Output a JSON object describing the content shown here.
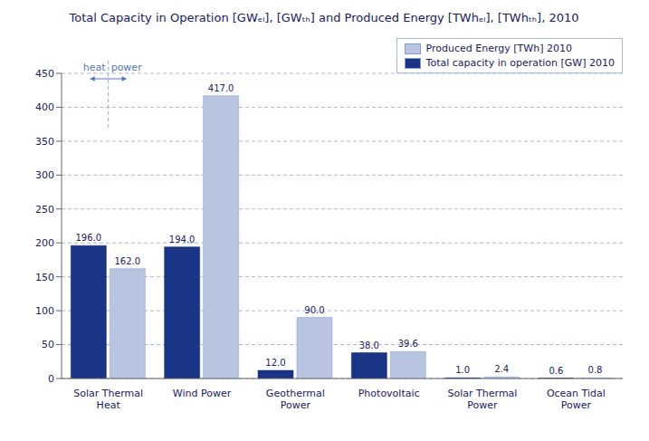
{
  "chart_data": {
    "type": "bar",
    "title": "Total Capacity in Operation [GWₑₗ], [GWₜₕ] and Produced Energy [TWhₑₗ], [TWhₜₕ], 2010",
    "categories": [
      "Solar Thermal\nHeat",
      "Wind Power",
      "Geothermal\nPower",
      "Photovoltaic",
      "Solar Thermal\nPower",
      "Ocean Tidal\nPower"
    ],
    "series": [
      {
        "name": "Total capacity in operation [GW] 2010",
        "color": "#1a3585",
        "values": [
          196.0,
          194.0,
          12.0,
          38.0,
          1.0,
          0.6
        ],
        "value_labels": [
          "196.0",
          "194.0",
          "12.0",
          "38.0",
          "1.0",
          "0.6"
        ]
      },
      {
        "name": "Produced Energy [TWh] 2010",
        "color": "#b8c4e0",
        "values": [
          162.0,
          417.0,
          90.0,
          39.6,
          2.4,
          0.8
        ],
        "value_labels": [
          "162.0",
          "417.0",
          "90.0",
          "39.6",
          "2.4",
          "0.8"
        ]
      }
    ],
    "ylim": [
      0,
      450
    ],
    "yticks": [
      0,
      50,
      100,
      150,
      200,
      250,
      300,
      350,
      400,
      450
    ],
    "grid": true,
    "legend": "upper right",
    "data_labels": true,
    "annotations": [
      "heat",
      "power"
    ]
  }
}
